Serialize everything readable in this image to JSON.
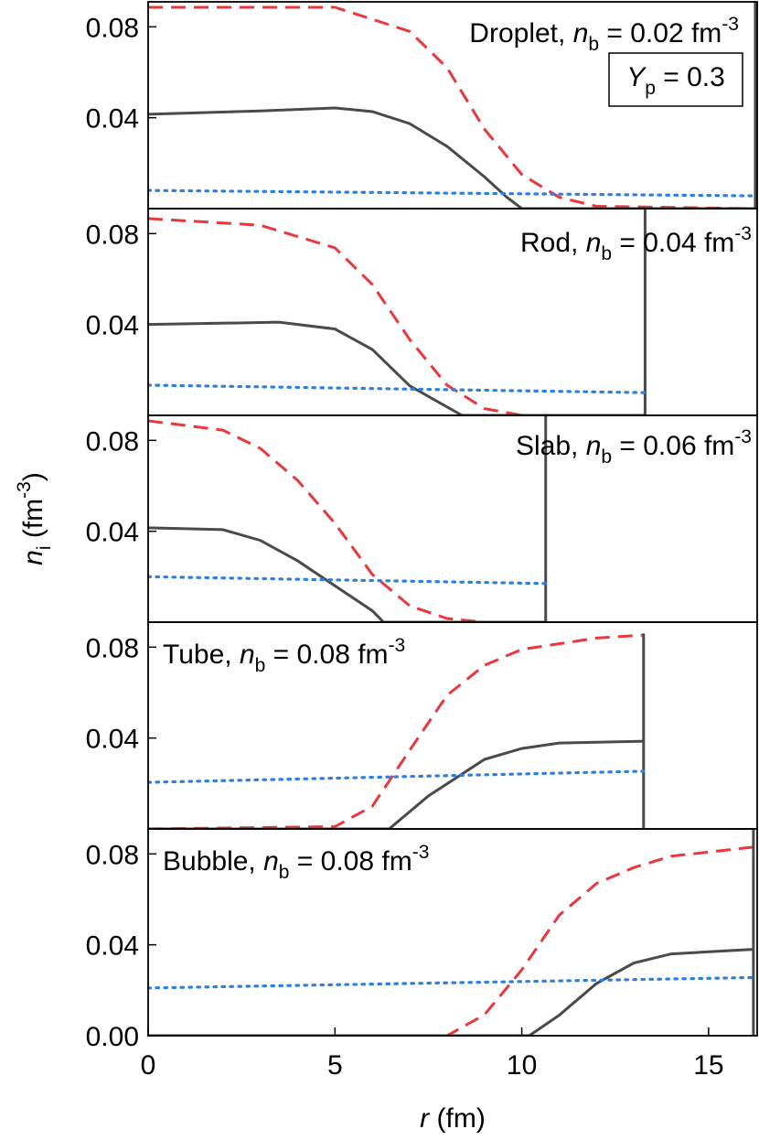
{
  "chart_data": [
    {
      "type": "line",
      "title": {
        "prefix": "Droplet, ",
        "var": "n",
        "sub": "b",
        "rest": " = 0.02 fm",
        "sup": "-3"
      },
      "annotation": {
        "var": "Y",
        "sub": "p",
        "rest": " = 0.3"
      },
      "xlim": [
        0,
        16.3
      ],
      "ylim": [
        0,
        0.091
      ],
      "yticks": [
        0.04,
        0.08
      ],
      "series": [
        {
          "color": "#e8383d",
          "style": "dashed",
          "x": [
            0,
            5,
            7,
            8,
            9,
            10,
            11,
            12,
            16.25
          ],
          "values": [
            0.0886,
            0.0886,
            0.078,
            0.062,
            0.035,
            0.015,
            0.005,
            0.001,
            0
          ]
        },
        {
          "color": "#4a4a4a",
          "style": "solid",
          "x": [
            0,
            3,
            5,
            6,
            7,
            8,
            9,
            9.6,
            10,
            16.25,
            16.25
          ],
          "values": [
            0.0415,
            0.043,
            0.0443,
            0.0427,
            0.0374,
            0.0274,
            0.014,
            0.005,
            0,
            0,
            0.091
          ]
        },
        {
          "color": "#2f7fe0",
          "style": "dotted",
          "x": [
            0,
            16.25
          ],
          "values": [
            0.008,
            0.0056
          ]
        }
      ]
    },
    {
      "type": "line",
      "title": {
        "prefix": "Rod, ",
        "var": "n",
        "sub": "b",
        "rest": " = 0.04 fm",
        "sup": "-3"
      },
      "xlim": [
        0,
        16.3
      ],
      "ylim": [
        0,
        0.091
      ],
      "yticks": [
        0.04,
        0.08
      ],
      "series": [
        {
          "color": "#e8383d",
          "style": "dashed",
          "x": [
            0,
            3,
            5,
            6,
            7,
            8,
            9,
            10,
            13.3
          ],
          "values": [
            0.0866,
            0.0837,
            0.0737,
            0.0576,
            0.0334,
            0.0133,
            0.003,
            0,
            0
          ]
        },
        {
          "color": "#4a4a4a",
          "style": "solid",
          "x": [
            0,
            3.5,
            5,
            6,
            7,
            8.4,
            13.3,
            13.3
          ],
          "values": [
            0.04,
            0.041,
            0.038,
            0.029,
            0.013,
            0,
            0,
            0.091
          ]
        },
        {
          "color": "#2f7fe0",
          "style": "dotted",
          "x": [
            0,
            13.3
          ],
          "values": [
            0.0133,
            0.01
          ]
        }
      ]
    },
    {
      "type": "line",
      "title": {
        "prefix": "Slab, ",
        "var": "n",
        "sub": "b",
        "rest": " = 0.06 fm",
        "sup": "-3"
      },
      "ylabel": {
        "var": "n",
        "sub": "i",
        "rest": " (fm",
        "sup": "-3",
        "end": ")"
      },
      "xlim": [
        0,
        16.3
      ],
      "ylim": [
        0,
        0.091
      ],
      "yticks": [
        0.04,
        0.08
      ],
      "series": [
        {
          "color": "#e8383d",
          "style": "dashed",
          "x": [
            0,
            2,
            3,
            4,
            5,
            6,
            7,
            8,
            9,
            10.64
          ],
          "values": [
            0.0886,
            0.0845,
            0.0765,
            0.0624,
            0.0435,
            0.021,
            0.0072,
            0.0016,
            0,
            0
          ]
        },
        {
          "color": "#4a4a4a",
          "style": "solid",
          "x": [
            0,
            2,
            3,
            4,
            5,
            6,
            6.3,
            10.64,
            10.64
          ],
          "values": [
            0.0415,
            0.0407,
            0.036,
            0.027,
            0.016,
            0.005,
            0,
            0,
            0.091
          ]
        },
        {
          "color": "#2f7fe0",
          "style": "dotted",
          "x": [
            0,
            10.64
          ],
          "values": [
            0.02,
            0.017
          ]
        }
      ]
    },
    {
      "type": "line",
      "title": {
        "prefix": "Tube, ",
        "var": "n",
        "sub": "b",
        "rest": " = 0.08 fm",
        "sup": "-3"
      },
      "xlim": [
        0,
        16.3
      ],
      "ylim": [
        0,
        0.091
      ],
      "yticks": [
        0.04,
        0.08
      ],
      "series": [
        {
          "color": "#e8383d",
          "style": "dashed",
          "x": [
            0,
            5,
            6,
            7,
            8,
            9,
            10,
            12,
            13.26
          ],
          "values": [
            0,
            0.001,
            0.01,
            0.0346,
            0.0588,
            0.072,
            0.079,
            0.084,
            0.0853
          ]
        },
        {
          "color": "#4a4a4a",
          "style": "solid",
          "x": [
            0,
            6.45,
            7.5,
            9,
            10,
            11,
            13.26,
            13.26,
            13.26
          ],
          "values": [
            0,
            0,
            0.0145,
            0.0306,
            0.0354,
            0.0378,
            0.0386,
            0,
            0.086
          ]
        },
        {
          "color": "#2f7fe0",
          "style": "dotted",
          "x": [
            0,
            13.26
          ],
          "values": [
            0.0205,
            0.0254
          ]
        }
      ]
    },
    {
      "type": "line",
      "title": {
        "prefix": "Bubble, ",
        "var": "n",
        "sub": "b",
        "rest": " = 0.08 fm",
        "sup": "-3"
      },
      "xlabel": {
        "var": "r",
        "rest": " (fm)"
      },
      "xlim": [
        0,
        16.3
      ],
      "ylim": [
        0,
        0.091
      ],
      "xticks": [
        0,
        5,
        10,
        15
      ],
      "yticks": [
        {
          "value": 0,
          "label": "0.00"
        },
        0.04,
        0.08
      ],
      "series": [
        {
          "color": "#e8383d",
          "style": "dashed",
          "x": [
            0,
            8,
            9,
            10,
            11,
            12,
            13,
            14,
            16.2
          ],
          "values": [
            0,
            0,
            0.0092,
            0.029,
            0.053,
            0.067,
            0.074,
            0.079,
            0.083
          ]
        },
        {
          "color": "#4a4a4a",
          "style": "solid",
          "x": [
            0,
            10.2,
            11,
            12,
            13,
            14,
            16.2,
            16.2,
            16.2
          ],
          "values": [
            0,
            0,
            0.009,
            0.023,
            0.032,
            0.036,
            0.038,
            0,
            0.091
          ]
        },
        {
          "color": "#2f7fe0",
          "style": "dotted",
          "x": [
            0,
            16.2
          ],
          "values": [
            0.021,
            0.0256
          ]
        }
      ]
    }
  ]
}
